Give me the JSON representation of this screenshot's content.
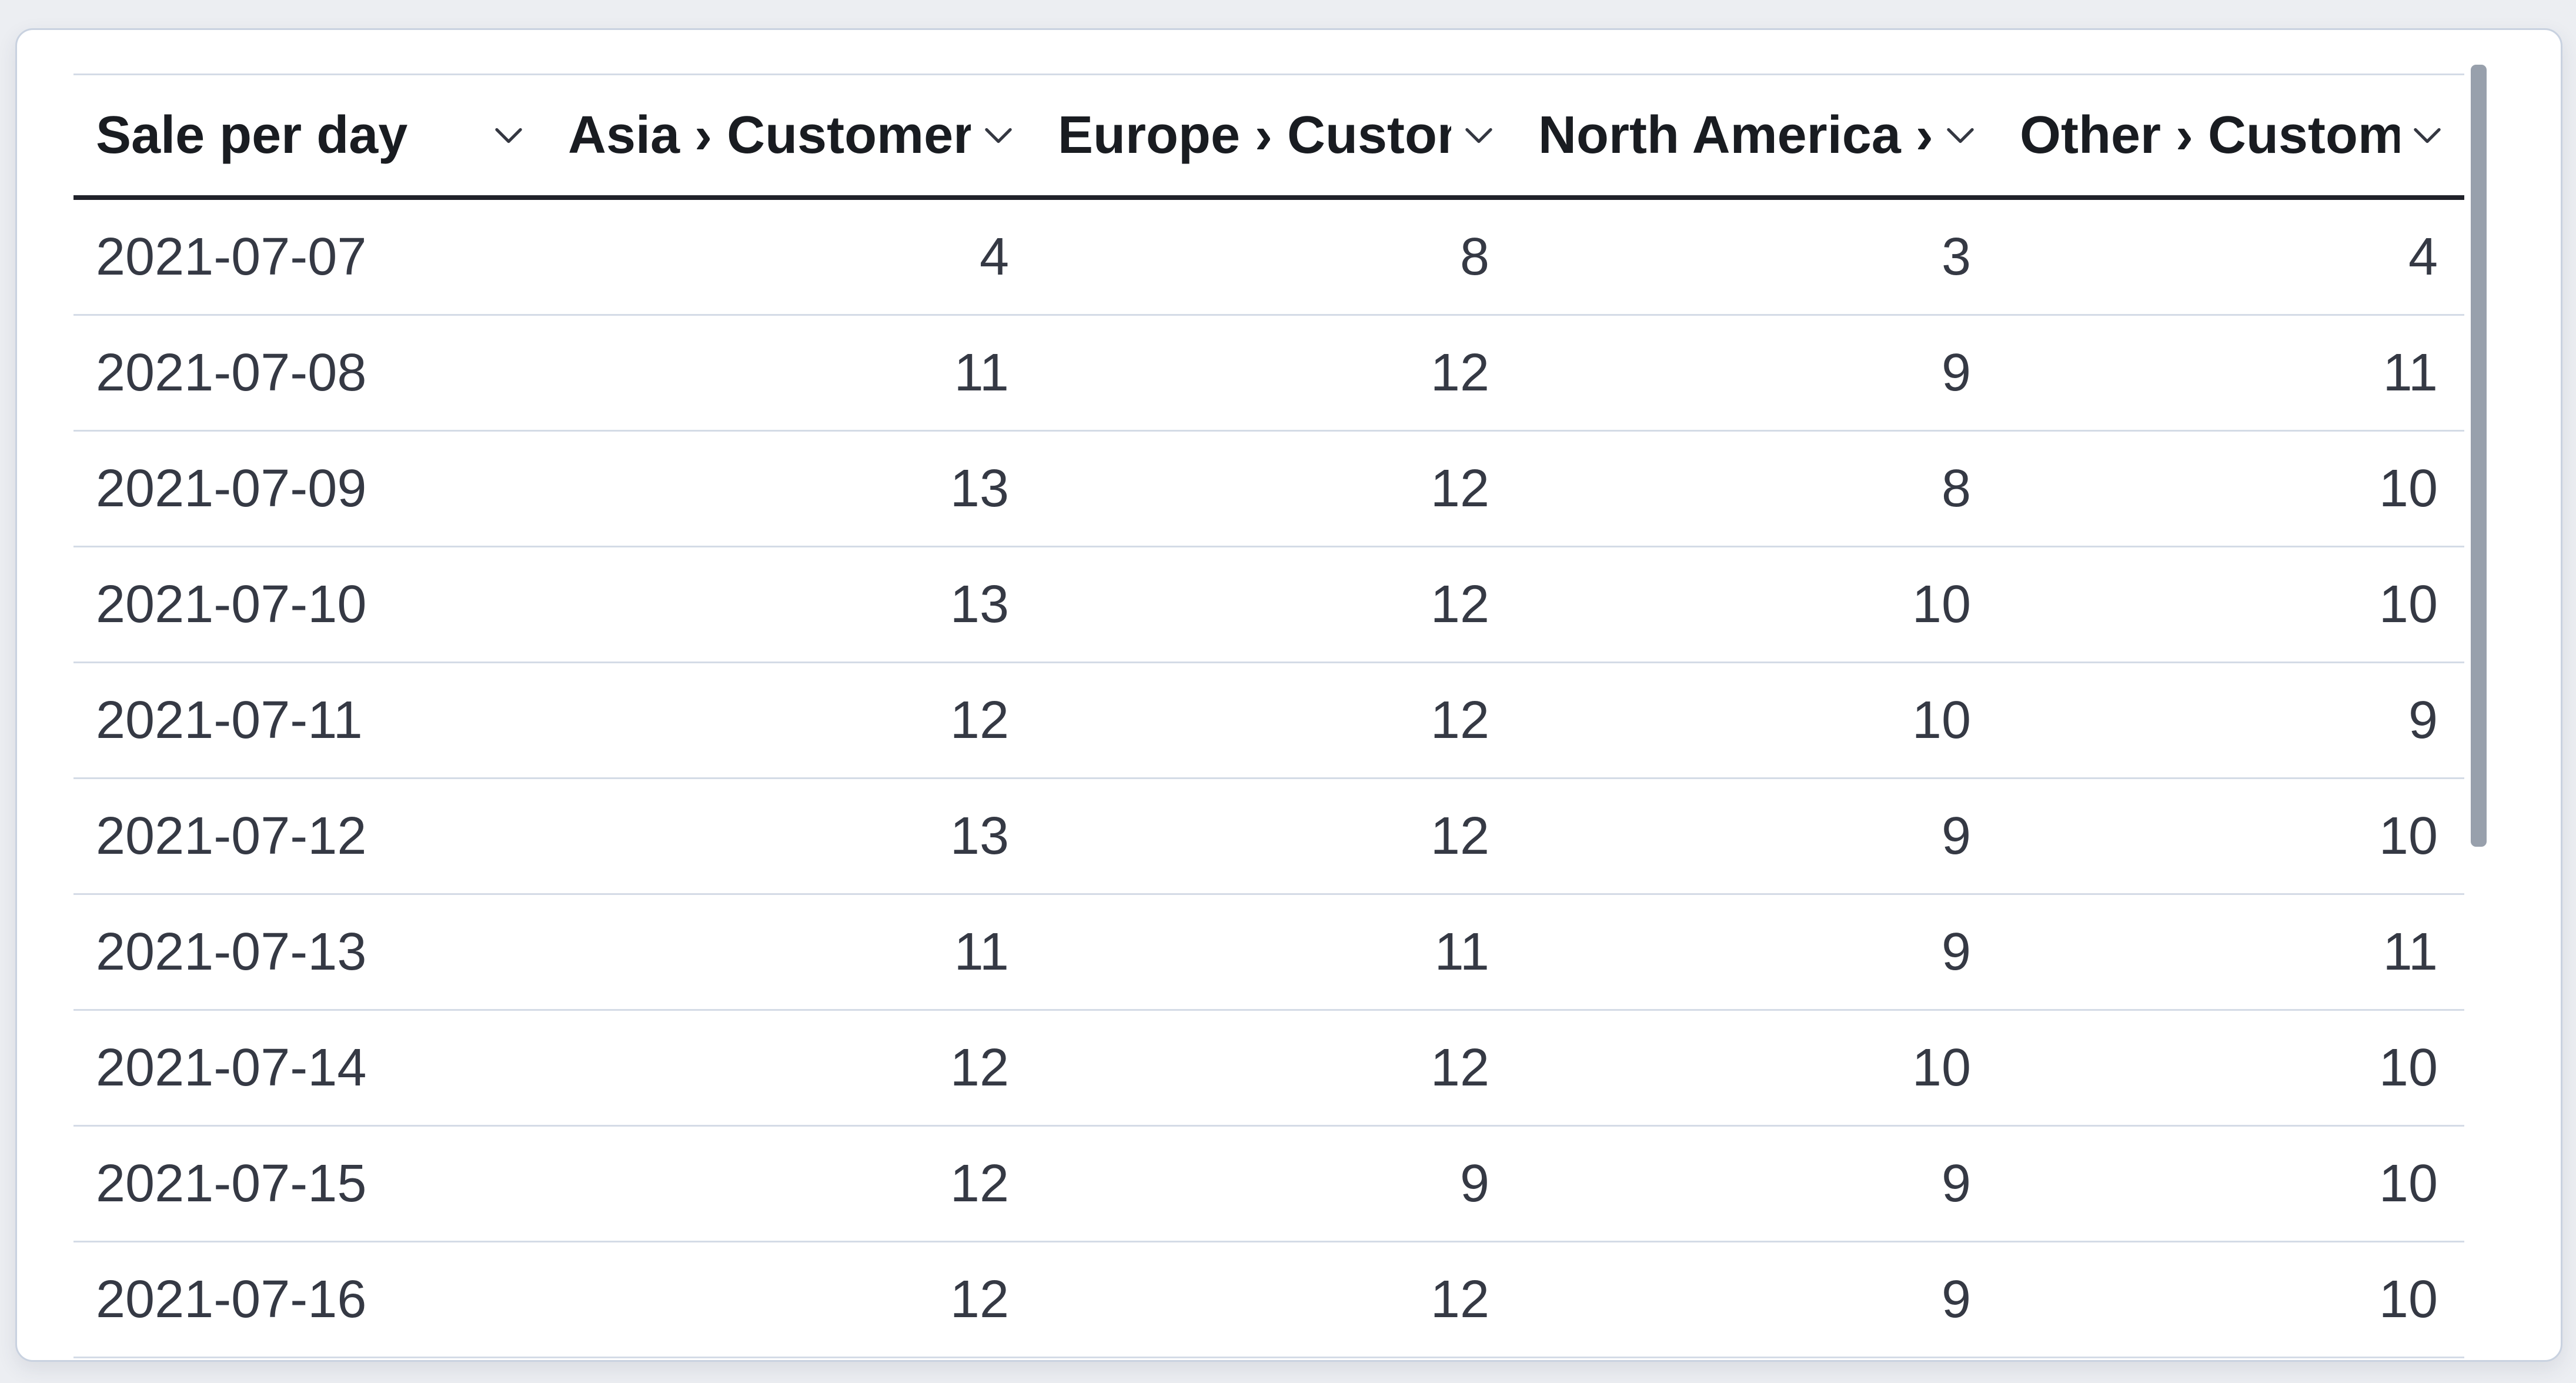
{
  "panel": {
    "page_background": "#eceef2",
    "card_background": "#ffffff",
    "card_border_color": "#c9d2e0",
    "header_underline_color": "#20222a",
    "row_divider_color": "#d4dbe6",
    "scrollbar_thumb_color": "#98a0ac",
    "header_text_color": "#191c21",
    "cell_text_color": "#353944"
  },
  "table": {
    "columns": [
      {
        "label": "Sale per day",
        "align": "left",
        "sort_icon": "chevron-down-icon"
      },
      {
        "label": "Asia › Customers",
        "align": "right",
        "sort_icon": "chevron-down-icon"
      },
      {
        "label": "Europe › Customers",
        "align": "right",
        "sort_icon": "chevron-down-icon"
      },
      {
        "label": "North America › Customers",
        "align": "right",
        "sort_icon": "chevron-down-icon"
      },
      {
        "label": "Other › Customers",
        "align": "right",
        "sort_icon": "chevron-down-icon"
      }
    ],
    "rows": [
      {
        "date": "2021-07-07",
        "values": [
          4,
          8,
          3,
          4
        ]
      },
      {
        "date": "2021-07-08",
        "values": [
          11,
          12,
          9,
          11
        ]
      },
      {
        "date": "2021-07-09",
        "values": [
          13,
          12,
          8,
          10
        ]
      },
      {
        "date": "2021-07-10",
        "values": [
          13,
          12,
          10,
          10
        ]
      },
      {
        "date": "2021-07-11",
        "values": [
          12,
          12,
          10,
          9
        ]
      },
      {
        "date": "2021-07-12",
        "values": [
          13,
          12,
          9,
          10
        ]
      },
      {
        "date": "2021-07-13",
        "values": [
          11,
          11,
          9,
          11
        ]
      },
      {
        "date": "2021-07-14",
        "values": [
          12,
          12,
          10,
          10
        ]
      },
      {
        "date": "2021-07-15",
        "values": [
          12,
          9,
          9,
          10
        ]
      },
      {
        "date": "2021-07-16",
        "values": [
          12,
          12,
          9,
          10
        ]
      }
    ]
  }
}
